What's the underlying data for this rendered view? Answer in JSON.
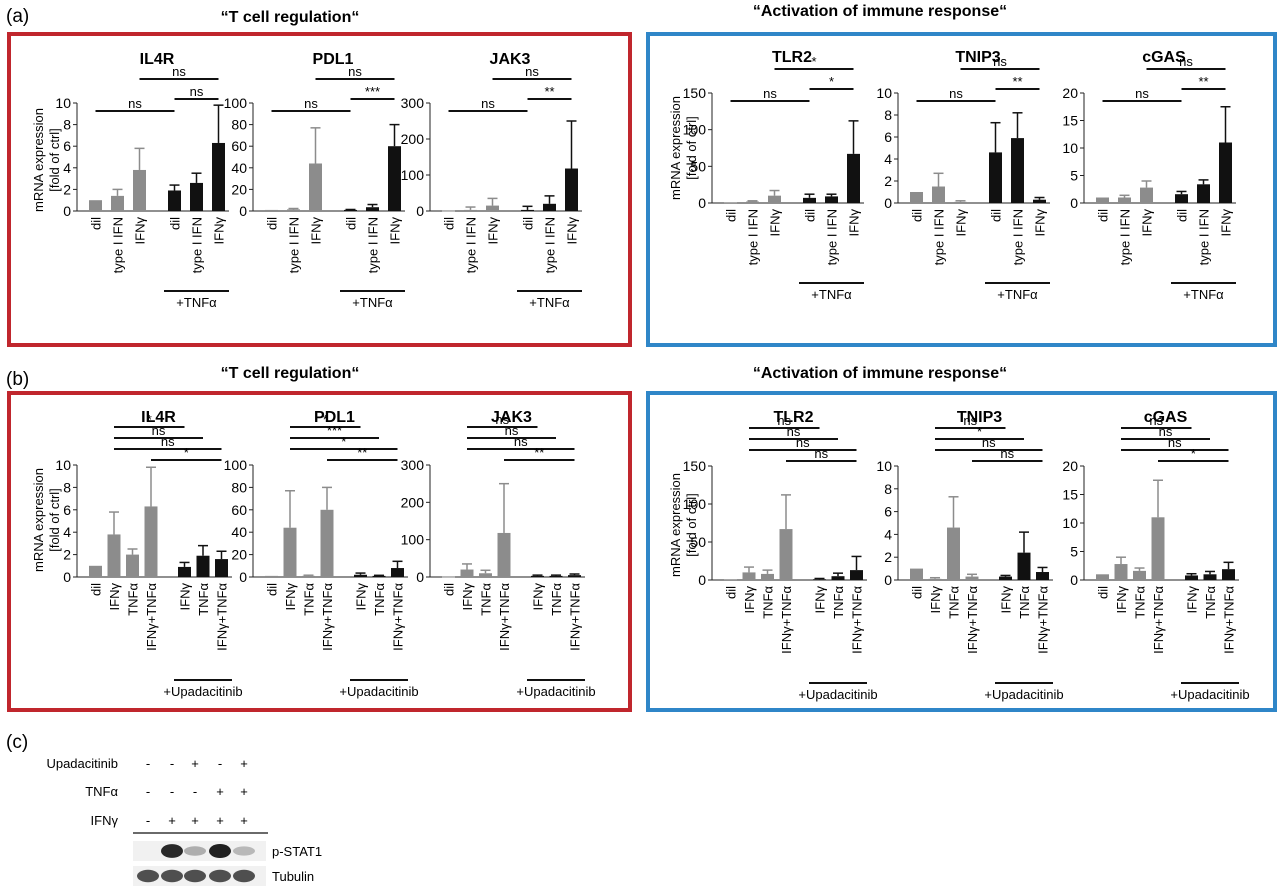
{
  "panel_labels": [
    "(a)",
    "(b)",
    "(c)"
  ],
  "group_titles": {
    "left": "“T cell regulation“",
    "right": "“Activation of immune response“"
  },
  "y_label_lines": [
    "mRNA expression",
    "[fold of ctrl]"
  ],
  "colors": {
    "red_frame": "#c0262d",
    "blue_frame": "#2f86c8",
    "gray_bar": "#8c8c8c",
    "black_bar": "#111111"
  },
  "row_a": {
    "categories": [
      "dil",
      "type I IFN",
      "IFNγ",
      "dil",
      "type I IFN",
      "IFNγ"
    ],
    "group_label": "+TNFα"
  },
  "row_b": {
    "categories": [
      "dil",
      "IFNγ",
      "TNFα",
      "IFNγ+TNFα",
      "IFNγ",
      "TNFα",
      "IFNγ+TNFα"
    ],
    "group_label": "+Upadacitinib"
  },
  "chart_data": [
    {
      "type": "bar",
      "panel": "a",
      "title": "IL4R",
      "ylabel": "mRNA expression [fold of ctrl]",
      "ylim": [
        0,
        10
      ],
      "yticks": [
        0,
        2,
        4,
        6,
        8,
        10
      ],
      "categories": [
        "dil",
        "type I IFN",
        "IFNγ",
        "dil",
        "type I IFN",
        "IFNγ"
      ],
      "values": [
        1,
        1.4,
        3.8,
        1.9,
        2.6,
        6.3
      ],
      "errors": [
        0,
        0.6,
        2.0,
        0.5,
        0.9,
        3.5
      ],
      "colors": [
        "gray",
        "gray",
        "gray",
        "black",
        "black",
        "black"
      ],
      "significance": [
        {
          "from": 0,
          "to": 3,
          "label": "ns"
        },
        {
          "from": 3,
          "to": 5,
          "label": "ns"
        },
        {
          "from": 2,
          "to": 5,
          "label": "ns"
        }
      ]
    },
    {
      "type": "bar",
      "panel": "a",
      "title": "PDL1",
      "ylim": [
        0,
        100
      ],
      "yticks": [
        0,
        20,
        40,
        60,
        80,
        100
      ],
      "categories": [
        "dil",
        "type I IFN",
        "IFNγ",
        "dil",
        "type I IFN",
        "IFNγ"
      ],
      "values": [
        1,
        1.5,
        44,
        1,
        3.5,
        60
      ],
      "errors": [
        0,
        0.8,
        33,
        0.4,
        2.5,
        20
      ],
      "colors": [
        "gray",
        "gray",
        "gray",
        "black",
        "black",
        "black"
      ],
      "significance": [
        {
          "from": 0,
          "to": 3,
          "label": "ns"
        },
        {
          "from": 3,
          "to": 5,
          "label": "***"
        },
        {
          "from": 2,
          "to": 5,
          "label": "ns"
        }
      ]
    },
    {
      "type": "bar",
      "panel": "a",
      "title": "JAK3",
      "ylim": [
        0,
        300
      ],
      "yticks": [
        0,
        100,
        200,
        300
      ],
      "categories": [
        "dil",
        "type I IFN",
        "IFNγ",
        "dil",
        "type I IFN",
        "IFNγ"
      ],
      "values": [
        1,
        3,
        15,
        3,
        20,
        118
      ],
      "errors": [
        0,
        8,
        20,
        10,
        22,
        132
      ],
      "colors": [
        "gray",
        "gray",
        "gray",
        "black",
        "black",
        "black"
      ],
      "significance": [
        {
          "from": 0,
          "to": 3,
          "label": "ns"
        },
        {
          "from": 3,
          "to": 5,
          "label": "**"
        },
        {
          "from": 2,
          "to": 5,
          "label": "ns"
        }
      ]
    },
    {
      "type": "bar",
      "panel": "a",
      "title": "TLR2",
      "ylabel": "mRNA expression [fold of ctrl]",
      "ylim": [
        0,
        150
      ],
      "yticks": [
        0,
        50,
        100,
        150
      ],
      "categories": [
        "dil",
        "type I IFN",
        "IFNγ",
        "dil",
        "type I IFN",
        "IFNγ"
      ],
      "values": [
        1,
        2,
        10,
        7,
        9,
        67
      ],
      "errors": [
        0,
        1,
        7,
        5,
        3,
        45
      ],
      "colors": [
        "gray",
        "gray",
        "gray",
        "black",
        "black",
        "black"
      ],
      "significance": [
        {
          "from": 0,
          "to": 3,
          "label": "ns"
        },
        {
          "from": 3,
          "to": 5,
          "label": "*"
        },
        {
          "from": 2,
          "to": 5,
          "label": "*"
        }
      ]
    },
    {
      "type": "bar",
      "panel": "a",
      "title": "TNIP3",
      "ylim": [
        0,
        10
      ],
      "yticks": [
        0,
        2,
        4,
        6,
        8,
        10
      ],
      "categories": [
        "dil",
        "type I IFN",
        "IFNγ",
        "dil",
        "type I IFN",
        "IFNγ"
      ],
      "values": [
        1,
        1.5,
        0.1,
        4.6,
        5.9,
        0.3
      ],
      "errors": [
        0,
        1.2,
        0.1,
        2.7,
        2.3,
        0.2
      ],
      "colors": [
        "gray",
        "gray",
        "gray",
        "black",
        "black",
        "black"
      ],
      "significance": [
        {
          "from": 0,
          "to": 3,
          "label": "ns"
        },
        {
          "from": 3,
          "to": 5,
          "label": "**"
        },
        {
          "from": 2,
          "to": 5,
          "label": "ns"
        }
      ]
    },
    {
      "type": "bar",
      "panel": "a",
      "title": "cGAS",
      "ylim": [
        0,
        20
      ],
      "yticks": [
        0,
        5,
        10,
        15,
        20
      ],
      "categories": [
        "dil",
        "type I IFN",
        "IFNγ",
        "dil",
        "type I IFN",
        "IFNγ"
      ],
      "values": [
        1,
        1,
        2.8,
        1.6,
        3.4,
        11
      ],
      "errors": [
        0,
        0.4,
        1.2,
        0.5,
        0.8,
        6.5
      ],
      "colors": [
        "gray",
        "gray",
        "gray",
        "black",
        "black",
        "black"
      ],
      "significance": [
        {
          "from": 0,
          "to": 3,
          "label": "ns"
        },
        {
          "from": 3,
          "to": 5,
          "label": "**"
        },
        {
          "from": 2,
          "to": 5,
          "label": "ns"
        }
      ]
    },
    {
      "type": "bar",
      "panel": "b",
      "title": "IL4R",
      "ylabel": "mRNA expression [fold of ctrl]",
      "ylim": [
        0,
        10
      ],
      "yticks": [
        0,
        2,
        4,
        6,
        8,
        10
      ],
      "categories": [
        "dil",
        "IFNγ",
        "TNFα",
        "IFNγ+TNFα",
        "IFNγ",
        "TNFα",
        "IFNγ+TNFα"
      ],
      "values": [
        1,
        3.8,
        2,
        6.3,
        0.9,
        1.9,
        1.6
      ],
      "errors": [
        0,
        2.0,
        0.5,
        3.5,
        0.4,
        0.9,
        0.7
      ],
      "colors": [
        "gray",
        "gray",
        "gray",
        "gray",
        "black",
        "black",
        "black"
      ],
      "significance": [
        {
          "from": 1,
          "to": 4,
          "label": "*"
        },
        {
          "from": 1,
          "to": 5,
          "label": "ns"
        },
        {
          "from": 1,
          "to": 6,
          "label": "ns"
        },
        {
          "from": 3,
          "to": 6,
          "label": "*"
        }
      ]
    },
    {
      "type": "bar",
      "panel": "b",
      "title": "PDL1",
      "ylim": [
        0,
        100
      ],
      "yticks": [
        0,
        20,
        40,
        60,
        80,
        100
      ],
      "categories": [
        "dil",
        "IFNγ",
        "TNFα",
        "IFNγ+TNFα",
        "IFNγ",
        "TNFα",
        "IFNγ+TNFα"
      ],
      "values": [
        1,
        44,
        1,
        60,
        2,
        1,
        8
      ],
      "errors": [
        0,
        33,
        0.6,
        20,
        1.5,
        0.5,
        6
      ],
      "colors": [
        "gray",
        "gray",
        "gray",
        "gray",
        "black",
        "black",
        "black"
      ],
      "significance": [
        {
          "from": 1,
          "to": 4,
          "label": "*"
        },
        {
          "from": 1,
          "to": 5,
          "label": "***"
        },
        {
          "from": 1,
          "to": 6,
          "label": "*"
        },
        {
          "from": 3,
          "to": 6,
          "label": "**"
        }
      ]
    },
    {
      "type": "bar",
      "panel": "b",
      "title": "JAK3",
      "ylim": [
        0,
        300
      ],
      "yticks": [
        0,
        100,
        200,
        300
      ],
      "categories": [
        "dil",
        "IFNγ",
        "TNFα",
        "IFNγ+TNFα",
        "IFNγ",
        "TNFα",
        "IFNγ+TNFα"
      ],
      "values": [
        1,
        20,
        10,
        118,
        3,
        3,
        5
      ],
      "errors": [
        0,
        15,
        8,
        132,
        2,
        2,
        3
      ],
      "colors": [
        "gray",
        "gray",
        "gray",
        "gray",
        "black",
        "black",
        "black"
      ],
      "significance": [
        {
          "from": 1,
          "to": 4,
          "label": "ns"
        },
        {
          "from": 1,
          "to": 5,
          "label": "ns"
        },
        {
          "from": 1,
          "to": 6,
          "label": "ns"
        },
        {
          "from": 3,
          "to": 6,
          "label": "**"
        }
      ]
    },
    {
      "type": "bar",
      "panel": "b",
      "title": "TLR2",
      "ylabel": "mRNA expression [fold of ctrl]",
      "ylim": [
        0,
        150
      ],
      "yticks": [
        0,
        50,
        100,
        150
      ],
      "categories": [
        "dil",
        "IFNγ",
        "TNFα",
        "IFNγ+TNFα",
        "IFNγ",
        "TNFα",
        "IFNγ+TNFα"
      ],
      "values": [
        1,
        10,
        8,
        67,
        1,
        5,
        13
      ],
      "errors": [
        0,
        7,
        5,
        45,
        1,
        4,
        18
      ],
      "colors": [
        "gray",
        "gray",
        "gray",
        "gray",
        "black",
        "black",
        "black"
      ],
      "significance": [
        {
          "from": 1,
          "to": 4,
          "label": "ns"
        },
        {
          "from": 1,
          "to": 5,
          "label": "ns"
        },
        {
          "from": 1,
          "to": 6,
          "label": "ns"
        },
        {
          "from": 3,
          "to": 6,
          "label": "ns"
        }
      ]
    },
    {
      "type": "bar",
      "panel": "b",
      "title": "TNIP3",
      "ylim": [
        0,
        10
      ],
      "yticks": [
        0,
        2,
        4,
        6,
        8,
        10
      ],
      "categories": [
        "dil",
        "IFNγ",
        "TNFα",
        "IFNγ+TNFα",
        "IFNγ",
        "TNFα",
        "IFNγ+TNFα"
      ],
      "values": [
        1,
        0.1,
        4.6,
        0.3,
        0.3,
        2.4,
        0.7
      ],
      "errors": [
        0,
        0.1,
        2.7,
        0.2,
        0.1,
        1.8,
        0.4
      ],
      "colors": [
        "gray",
        "gray",
        "gray",
        "gray",
        "black",
        "black",
        "black"
      ],
      "significance": [
        {
          "from": 1,
          "to": 4,
          "label": "ns"
        },
        {
          "from": 1,
          "to": 5,
          "label": "*"
        },
        {
          "from": 1,
          "to": 6,
          "label": "ns"
        },
        {
          "from": 3,
          "to": 6,
          "label": "ns"
        }
      ]
    },
    {
      "type": "bar",
      "panel": "b",
      "title": "cGAS",
      "ylim": [
        0,
        20
      ],
      "yticks": [
        0,
        5,
        10,
        15,
        20
      ],
      "categories": [
        "dil",
        "IFNγ",
        "TNFα",
        "IFNγ+TNFα",
        "IFNγ",
        "TNFα",
        "IFNγ+TNFα"
      ],
      "values": [
        1,
        2.8,
        1.6,
        11,
        0.8,
        1,
        1.9
      ],
      "errors": [
        0,
        1.2,
        0.5,
        6.5,
        0.3,
        0.5,
        1.2
      ],
      "colors": [
        "gray",
        "gray",
        "gray",
        "gray",
        "black",
        "black",
        "black"
      ],
      "significance": [
        {
          "from": 1,
          "to": 4,
          "label": "ns"
        },
        {
          "from": 1,
          "to": 5,
          "label": "ns"
        },
        {
          "from": 1,
          "to": 6,
          "label": "ns"
        },
        {
          "from": 3,
          "to": 6,
          "label": "*"
        }
      ]
    }
  ],
  "western_blot": {
    "rows": [
      {
        "label": "Upadacitinib",
        "values": [
          "-",
          "-",
          "+",
          "-",
          "+"
        ]
      },
      {
        "label": "TNFα",
        "values": [
          "-",
          "-",
          "-",
          "+",
          "+"
        ]
      },
      {
        "label": "IFNγ",
        "values": [
          "-",
          "+",
          "+",
          "+",
          "+"
        ]
      }
    ],
    "bands": [
      {
        "label": "p-STAT1",
        "intensity": [
          0,
          0.95,
          0.25,
          1.0,
          0.2
        ]
      },
      {
        "label": "Tubulin",
        "intensity": [
          0.75,
          0.75,
          0.75,
          0.75,
          0.75
        ]
      }
    ]
  }
}
